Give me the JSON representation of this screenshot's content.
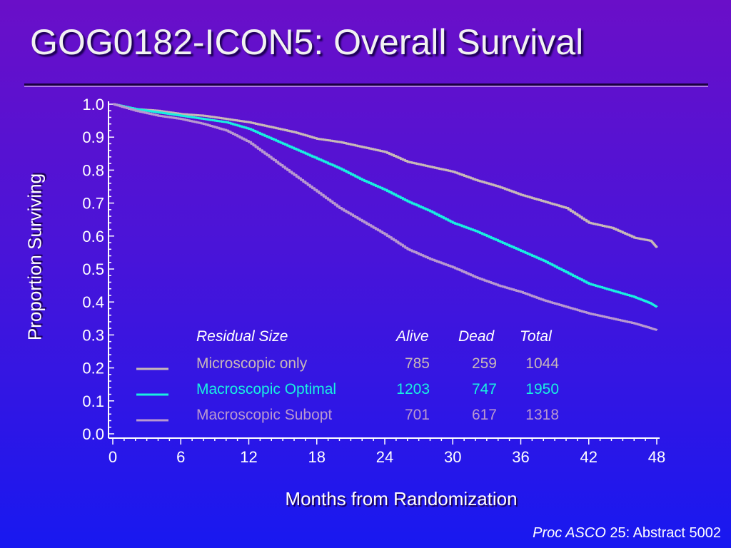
{
  "title": "GOG0182-ICON5:  Overall Survival",
  "citation": {
    "journal": "Proc ASCO",
    "rest": " 25: Abstract 5002"
  },
  "colors": {
    "microscopic": "#c8b8b8",
    "macro_optimal": "#19f0e0",
    "macro_subopt": "#b898d0",
    "header": "#ffffff"
  },
  "legend": {
    "headers": [
      "Residual Size",
      "Alive",
      "Dead",
      "Total"
    ],
    "rows": [
      {
        "label": "Microscopic only",
        "alive": "785",
        "dead": "259",
        "total": "1044",
        "color": "#c8b8b8"
      },
      {
        "label": "Macroscopic Optimal",
        "alive": "1203",
        "dead": "747",
        "total": "1950",
        "color": "#19f0e0"
      },
      {
        "label": "Macroscopic Subopt",
        "alive": "701",
        "dead": "617",
        "total": "1318",
        "color": "#b898d0"
      }
    ]
  },
  "chart_data": {
    "type": "line",
    "title": "",
    "xlabel": "Months from Randomization",
    "ylabel": "Proportion Surviving",
    "xlim": [
      0,
      48
    ],
    "ylim": [
      0.0,
      1.0
    ],
    "xticks": [
      "0",
      "6",
      "12",
      "18",
      "24",
      "30",
      "36",
      "42",
      "48"
    ],
    "yticks": [
      "0.0",
      "0.1",
      "0.2",
      "0.3",
      "0.4",
      "0.5",
      "0.6",
      "0.7",
      "0.8",
      "0.9",
      "1.0"
    ],
    "series": [
      {
        "name": "Microscopic only",
        "x": [
          0,
          2,
          4,
          6,
          8,
          10,
          12,
          14,
          16,
          18,
          20,
          22,
          24,
          26,
          28,
          30,
          32,
          34,
          36,
          38,
          40,
          42,
          44,
          46,
          47.5,
          48
        ],
        "y": [
          1.0,
          0.985,
          0.98,
          0.97,
          0.965,
          0.955,
          0.945,
          0.93,
          0.915,
          0.895,
          0.885,
          0.87,
          0.855,
          0.825,
          0.81,
          0.795,
          0.77,
          0.75,
          0.725,
          0.705,
          0.685,
          0.64,
          0.625,
          0.595,
          0.585,
          0.565
        ]
      },
      {
        "name": "Macroscopic Optimal",
        "x": [
          0,
          2,
          4,
          6,
          8,
          10,
          12,
          14,
          16,
          18,
          20,
          22,
          24,
          26,
          28,
          30,
          32,
          34,
          36,
          38,
          40,
          42,
          44,
          46,
          47.5,
          48
        ],
        "y": [
          1.0,
          0.985,
          0.975,
          0.965,
          0.955,
          0.945,
          0.925,
          0.895,
          0.865,
          0.835,
          0.805,
          0.77,
          0.74,
          0.705,
          0.675,
          0.64,
          0.615,
          0.585,
          0.555,
          0.525,
          0.49,
          0.455,
          0.435,
          0.415,
          0.395,
          0.385
        ]
      },
      {
        "name": "Macroscopic Subopt",
        "x": [
          0,
          2,
          4,
          6,
          8,
          10,
          12,
          14,
          16,
          18,
          20,
          22,
          24,
          26,
          28,
          30,
          32,
          34,
          36,
          38,
          40,
          42,
          44,
          46,
          47.5,
          48
        ],
        "y": [
          1.0,
          0.98,
          0.965,
          0.955,
          0.94,
          0.92,
          0.885,
          0.835,
          0.785,
          0.735,
          0.685,
          0.645,
          0.605,
          0.56,
          0.53,
          0.505,
          0.475,
          0.45,
          0.43,
          0.405,
          0.385,
          0.365,
          0.35,
          0.335,
          0.32,
          0.315
        ]
      }
    ]
  }
}
